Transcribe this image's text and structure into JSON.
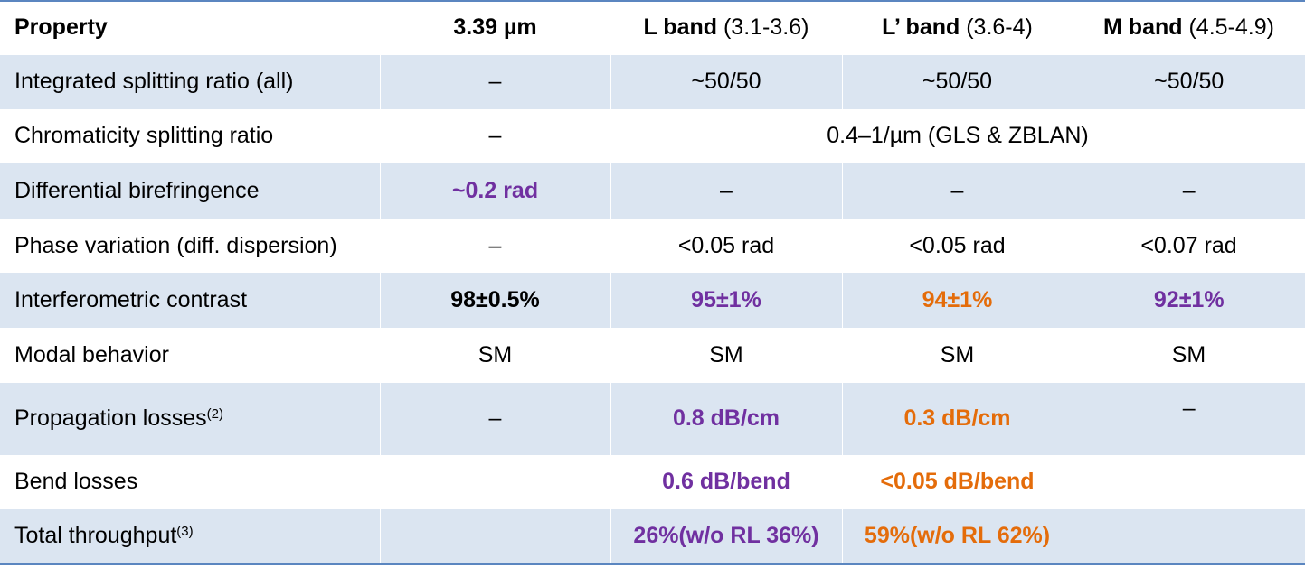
{
  "header": {
    "property": "Property",
    "col1": {
      "label": "3.39 µm"
    },
    "col2": {
      "label": "L band",
      "range": "(3.1-3.6)"
    },
    "col3": {
      "label": "L’ band",
      "range": "(3.6-4)"
    },
    "col4": {
      "label": "M band",
      "range": "(4.5-4.9)"
    }
  },
  "rows": {
    "splitting_all": {
      "label": "Integrated splitting ratio (all)",
      "c1": "–",
      "c2": "~50/50",
      "c3": "~50/50",
      "c4": "~50/50"
    },
    "chromaticity": {
      "label": "Chromaticity splitting ratio",
      "c1": "–",
      "span": "0.4–1/µm (GLS & ZBLAN)"
    },
    "birefringence": {
      "label": "Differential birefringence",
      "c1": "~0.2 rad",
      "c2": "–",
      "c3": "–",
      "c4": "–"
    },
    "phase": {
      "label": "Phase variation (diff. dispersion)",
      "c1": "–",
      "c2": "<0.05 rad",
      "c3": "<0.05 rad",
      "c4": "<0.07 rad"
    },
    "contrast": {
      "label": "Interferometric contrast",
      "c1": "98±0.5%",
      "c2": "95±1%",
      "c3": "94±1%",
      "c4": "92±1%"
    },
    "modal": {
      "label": "Modal behavior",
      "c1": "SM",
      "c2": "SM",
      "c3": "SM",
      "c4": "SM"
    },
    "propagation": {
      "label": "Propagation losses",
      "note": "(2)",
      "c1": "–",
      "c2": "0.8 dB/cm",
      "c3": "0.3 dB/cm",
      "c4": "–"
    },
    "bend": {
      "label": "Bend losses",
      "c1": "",
      "c2": "0.6 dB/bend",
      "c3": "<0.05 dB/bend",
      "c4": ""
    },
    "throughput": {
      "label": "Total throughput",
      "note": "(3)",
      "c1": "",
      "c2": "26%(w/o RL 36%)",
      "c3": "59%(w/o RL 62%)",
      "c4": ""
    }
  },
  "colors": {
    "purple": "#7030a0",
    "orange": "#e46c0a",
    "band_fill": "#dbe5f1",
    "rule": "#5b86c0"
  }
}
